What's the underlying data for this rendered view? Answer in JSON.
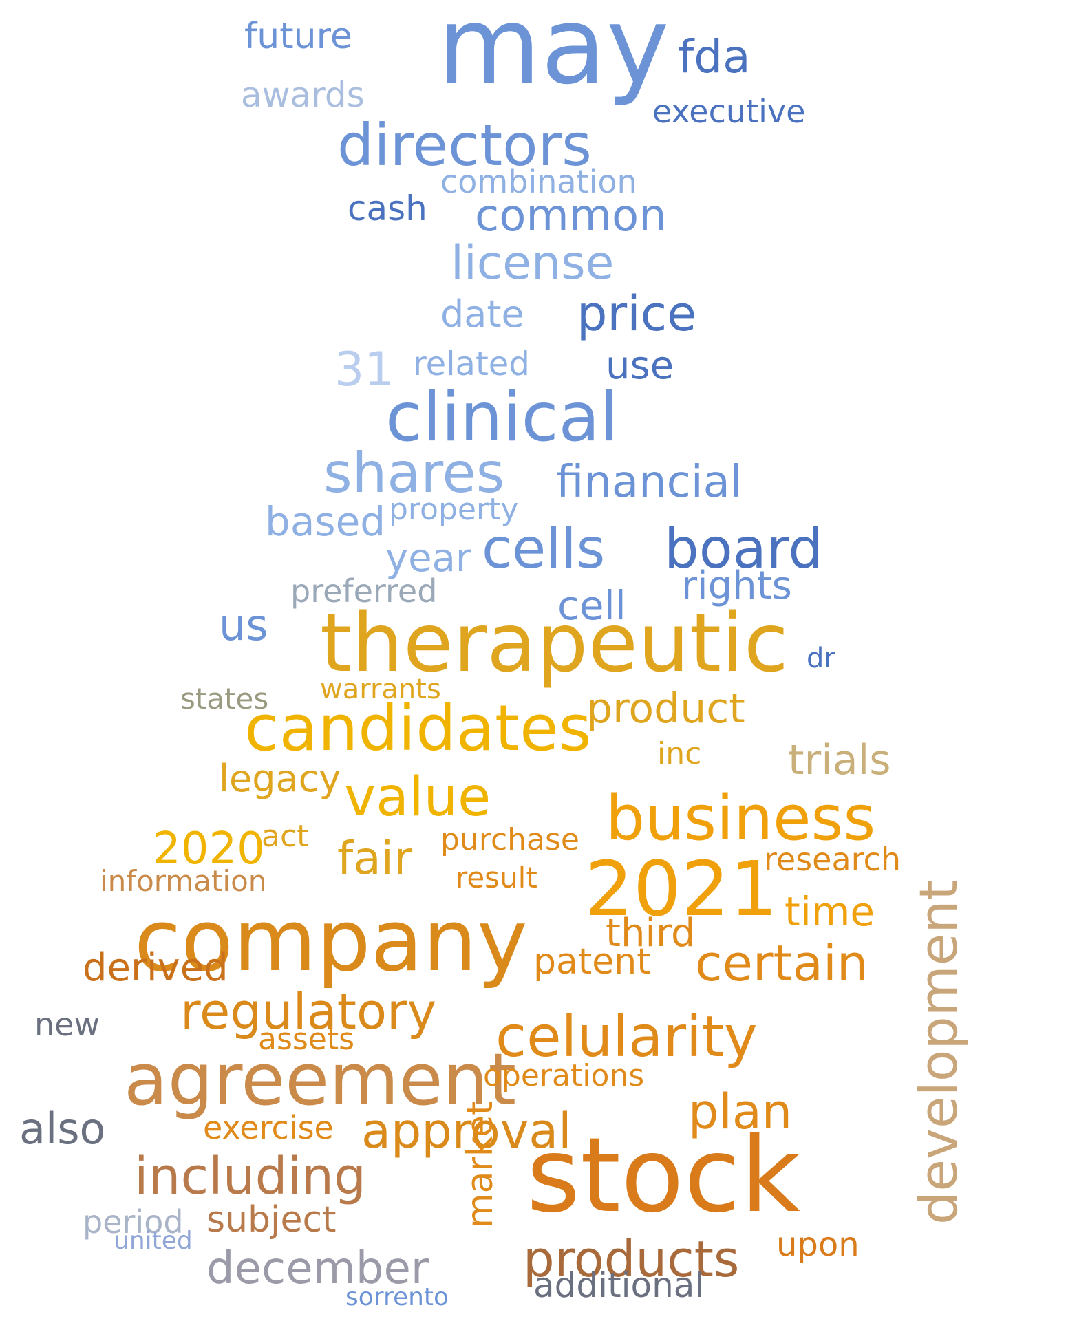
{
  "palette": {
    "blue_dark": "#3a5fa8",
    "blue_mid": "#6b93d6",
    "blue_light": "#a9bedf",
    "grey_blue": "#8a9bb3",
    "gold": "#e0a51f",
    "orange": "#f0a00a",
    "orange_dark": "#d97b1a",
    "brown": "#b86a2c",
    "tan": "#c9a57a"
  },
  "words": [
    {
      "text": "may",
      "color": "#6b93d6"
    },
    {
      "text": "fda",
      "color": "#4a72bf"
    },
    {
      "text": "future",
      "color": "#6b93d6"
    },
    {
      "text": "awards",
      "color": "#a9bedf"
    },
    {
      "text": "directors",
      "color": "#6b93d6"
    },
    {
      "text": "executive",
      "color": "#4a72bf"
    },
    {
      "text": "common",
      "color": "#6b93d6"
    },
    {
      "text": "combination",
      "color": "#8fb0e3"
    },
    {
      "text": "license",
      "color": "#8fb0e3"
    },
    {
      "text": "cash",
      "color": "#4a72bf"
    },
    {
      "text": "price",
      "color": "#4a72bf"
    },
    {
      "text": "date",
      "color": "#8fb0e3"
    },
    {
      "text": "31",
      "color": "#b9cdee"
    },
    {
      "text": "related",
      "color": "#8fb0e3"
    },
    {
      "text": "use",
      "color": "#4a72bf"
    },
    {
      "text": "clinical",
      "color": "#6b93d6"
    },
    {
      "text": "shares",
      "color": "#8fb0e3"
    },
    {
      "text": "financial",
      "color": "#6b93d6"
    },
    {
      "text": "based",
      "color": "#8fb0e3"
    },
    {
      "text": "cells",
      "color": "#6b93d6"
    },
    {
      "text": "board",
      "color": "#4a72bf"
    },
    {
      "text": "rights",
      "color": "#6b93d6"
    },
    {
      "text": "cell",
      "color": "#6b93d6"
    },
    {
      "text": "us",
      "color": "#6b93d6"
    },
    {
      "text": "preferred",
      "color": "#9aa8b8"
    },
    {
      "text": "year",
      "color": "#8fb0e3"
    },
    {
      "text": "property",
      "color": "#8fb0e3"
    },
    {
      "text": "therapeutic",
      "color": "#e0a51f"
    },
    {
      "text": "candidates",
      "color": "#f0b400"
    },
    {
      "text": "product",
      "color": "#e0a51f"
    },
    {
      "text": "business",
      "color": "#f0a00a"
    },
    {
      "text": "value",
      "color": "#f0b400"
    },
    {
      "text": "2020",
      "color": "#f0b400"
    },
    {
      "text": "2021",
      "color": "#f0a00a"
    },
    {
      "text": "trials",
      "color": "#c9b07a"
    },
    {
      "text": "legacy",
      "color": "#e0a51f"
    },
    {
      "text": "fair",
      "color": "#e0a51f"
    },
    {
      "text": "company",
      "color": "#d98a1a"
    },
    {
      "text": "agreement",
      "color": "#c98a4a"
    },
    {
      "text": "celularity",
      "color": "#e08a1a"
    },
    {
      "text": "development",
      "color": "#c9a57a"
    },
    {
      "text": "certain",
      "color": "#e08a1a"
    },
    {
      "text": "stock",
      "color": "#d97b1a"
    },
    {
      "text": "regulatory",
      "color": "#d98a1a"
    },
    {
      "text": "approval",
      "color": "#d98a1a"
    },
    {
      "text": "including",
      "color": "#b87a4a"
    },
    {
      "text": "also",
      "color": "#6a7080"
    },
    {
      "text": "december",
      "color": "#9a9aa8"
    },
    {
      "text": "products",
      "color": "#a86a3a"
    },
    {
      "text": "plan",
      "color": "#e08a1a"
    },
    {
      "text": "patent",
      "color": "#e08a1a"
    },
    {
      "text": "derived",
      "color": "#c9701a"
    },
    {
      "text": "time",
      "color": "#f0a00a"
    },
    {
      "text": "third",
      "color": "#e08a1a"
    },
    {
      "text": "research",
      "color": "#e08a1a"
    },
    {
      "text": "subject",
      "color": "#b87a4a"
    },
    {
      "text": "additional",
      "color": "#6a7080"
    },
    {
      "text": "market",
      "color": "#e08a1a"
    },
    {
      "text": "new",
      "color": "#6a7080"
    },
    {
      "text": "period",
      "color": "#a9b4c8"
    },
    {
      "text": "operations",
      "color": "#e08a1a"
    },
    {
      "text": "exercise",
      "color": "#e08a1a"
    },
    {
      "text": "assets",
      "color": "#e08a1a"
    },
    {
      "text": "information",
      "color": "#c98a4a"
    },
    {
      "text": "act",
      "color": "#e0a51f"
    },
    {
      "text": "purchase",
      "color": "#e08a1a"
    },
    {
      "text": "result",
      "color": "#e08a1a"
    },
    {
      "text": "upon",
      "color": "#d97b1a"
    },
    {
      "text": "states",
      "color": "#9a9a80"
    },
    {
      "text": "warrants",
      "color": "#e0a51f"
    },
    {
      "text": "inc",
      "color": "#e0a51f"
    },
    {
      "text": "dr",
      "color": "#4a72bf"
    },
    {
      "text": "united",
      "color": "#8fa6d6"
    },
    {
      "text": "sorrento",
      "color": "#6b93d6"
    }
  ]
}
